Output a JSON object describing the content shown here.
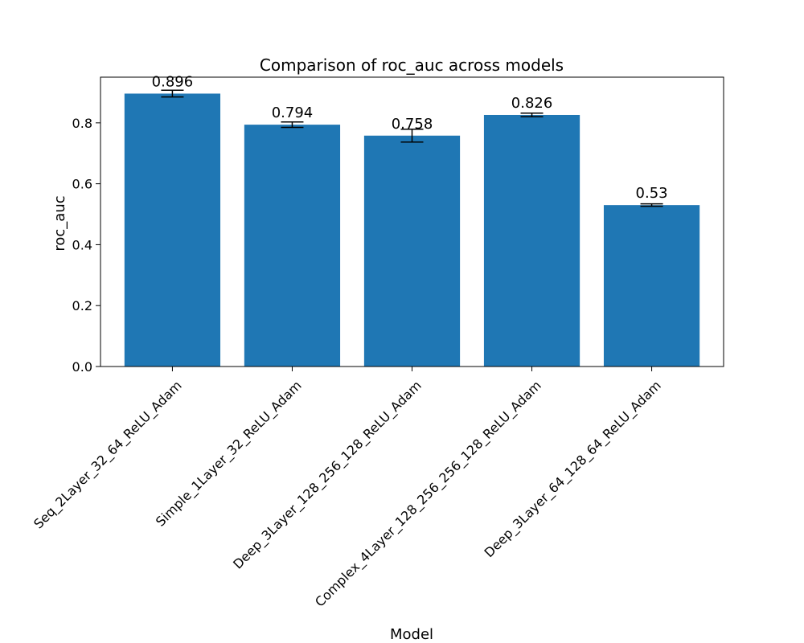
{
  "chart_data": {
    "type": "bar",
    "title": "Comparison of roc_auc across models",
    "xlabel": "Model",
    "ylabel": "roc_auc",
    "categories": [
      "Seq_2Layer_32_64_ReLU_Adam",
      "Simple_1Layer_32_ReLU_Adam",
      "Deep_3Layer_128_256_128_ReLU_Adam",
      "Complex_4Layer_128_256_256_128_ReLU_Adam",
      "Deep_3Layer_64_128_64_ReLU_Adam"
    ],
    "values": [
      0.896,
      0.794,
      0.758,
      0.826,
      0.53
    ],
    "value_labels": [
      "0.896",
      "0.794",
      "0.758",
      "0.826",
      "0.53"
    ],
    "errors": [
      0.011,
      0.009,
      0.021,
      0.006,
      0.004
    ],
    "ylim": [
      0,
      0.95
    ],
    "yticks": [
      0.0,
      0.2,
      0.4,
      0.6,
      0.8
    ],
    "ytick_labels": [
      "0.0",
      "0.2",
      "0.4",
      "0.6",
      "0.8"
    ],
    "bar_color": "#1f77b4",
    "grid": false,
    "legend": "none"
  }
}
